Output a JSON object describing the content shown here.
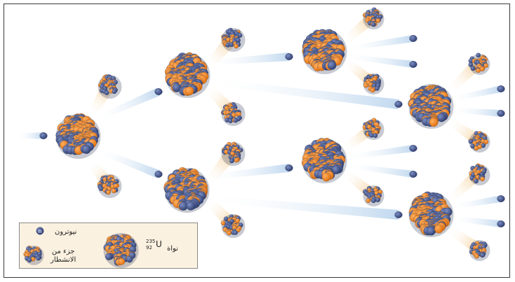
{
  "legend": {
    "neutron_label": "نيوترون",
    "neutron_glyph": "n",
    "fragment_label_line1": "جزء من",
    "fragment_label_line2": "الانشطار",
    "nucleus_label": "نواة",
    "isotope_mass": "235",
    "isotope_number": "92",
    "isotope_symbol": "U"
  },
  "colors": {
    "proton": "#f07f19",
    "neutron": "#3d4f86",
    "beam": "#c6dcf0",
    "fragment_trail": "#f6d9ad",
    "legend_bg": "#fbf1e1"
  }
}
